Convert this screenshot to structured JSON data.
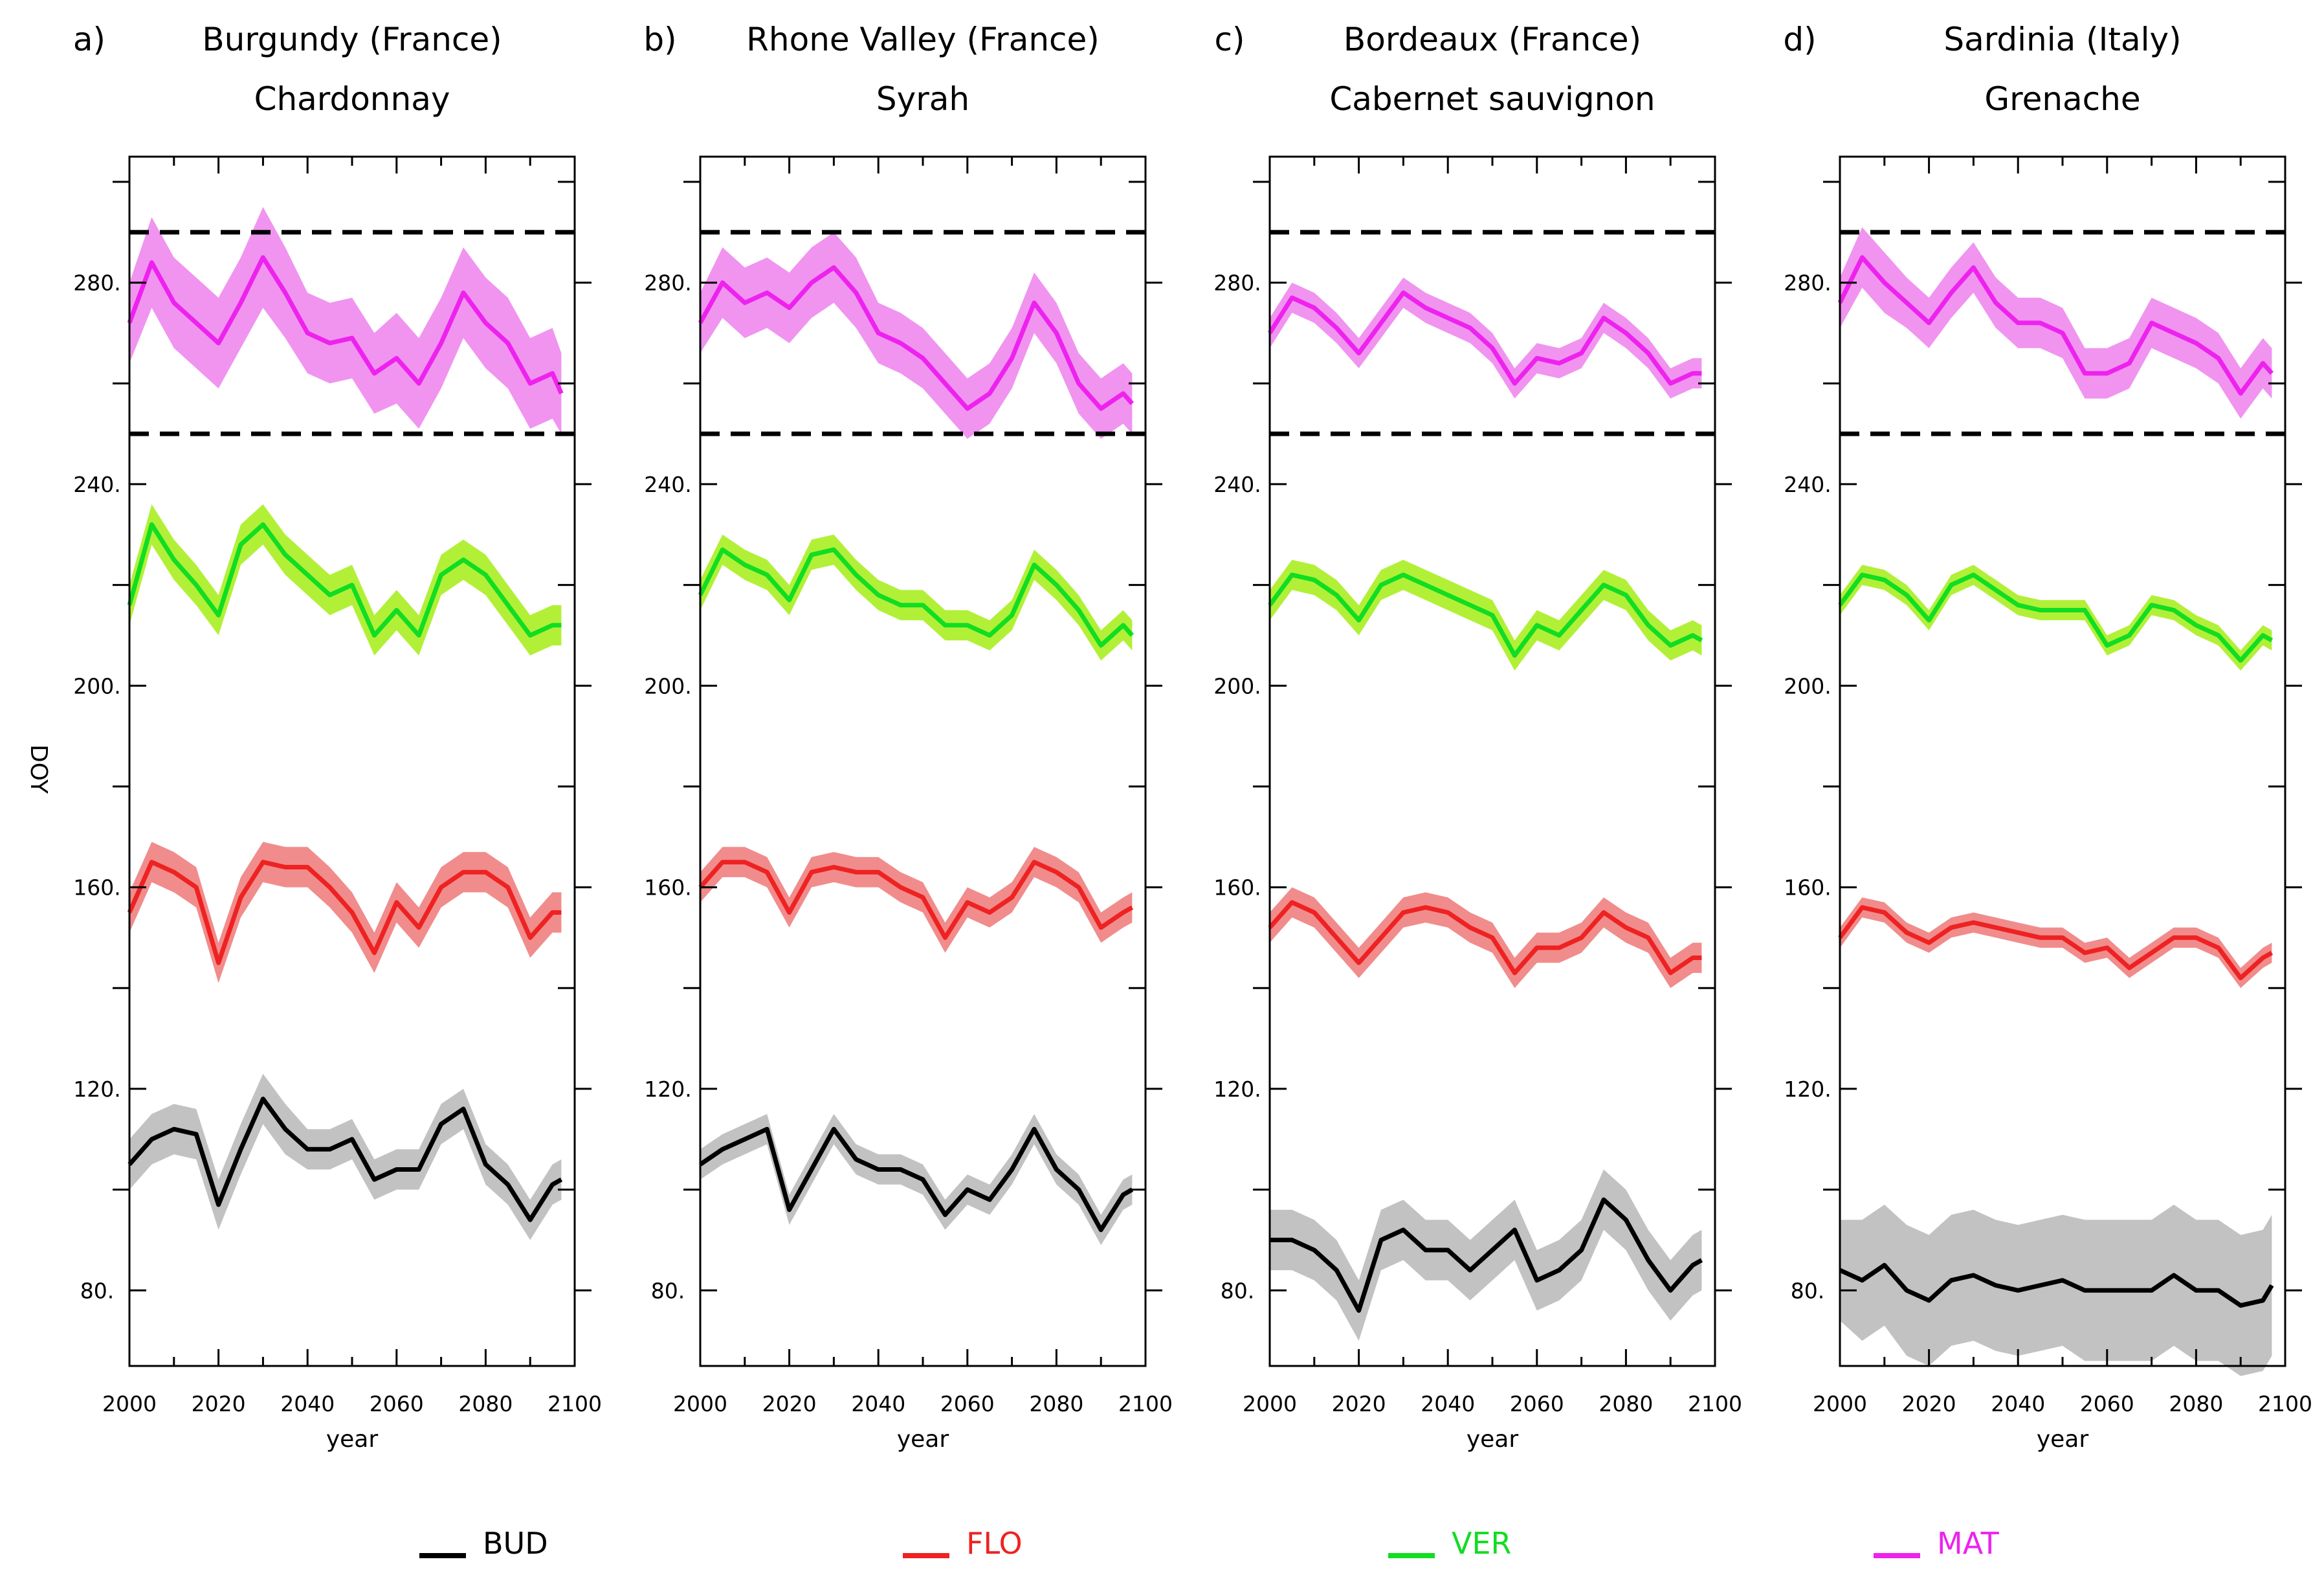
{
  "chart_data": {
    "type": "line",
    "ylabel": "DOY",
    "xlabel": "year",
    "xlim": [
      2000,
      2100
    ],
    "ylim": [
      65,
      305
    ],
    "xticks": [
      2000,
      2020,
      2040,
      2060,
      2080,
      2100
    ],
    "yticks": [
      80,
      120,
      160,
      200,
      240,
      280
    ],
    "ytick_labels": [
      "80.",
      "120.",
      "160.",
      "200.",
      "240.",
      "280."
    ],
    "reference_lines": [
      250,
      290
    ],
    "legend": [
      {
        "name": "BUD",
        "color": "#000000"
      },
      {
        "name": "FLO",
        "color": "#ee2222"
      },
      {
        "name": "VER",
        "color": "#11dd22"
      },
      {
        "name": "MAT",
        "color": "#ee22ee"
      }
    ],
    "panels": [
      {
        "letter": "a)",
        "region": "Burgundy (France)",
        "cultivar": "Chardonnay",
        "x": [
          2000,
          2005,
          2010,
          2015,
          2020,
          2025,
          2030,
          2035,
          2040,
          2045,
          2050,
          2055,
          2060,
          2065,
          2070,
          2075,
          2080,
          2085,
          2090,
          2095,
          2097
        ],
        "series": [
          {
            "name": "BUD",
            "values": [
              105,
              110,
              112,
              111,
              97,
              108,
              118,
              112,
              108,
              108,
              110,
              102,
              104,
              104,
              113,
              116,
              105,
              101,
              94,
              101,
              102
            ],
            "band": [
              5,
              5,
              5,
              5,
              5,
              5,
              5,
              5,
              4,
              4,
              4,
              4,
              4,
              4,
              4,
              4,
              4,
              4,
              4,
              4,
              4
            ]
          },
          {
            "name": "FLO",
            "values": [
              155,
              165,
              163,
              160,
              145,
              158,
              165,
              164,
              164,
              160,
              155,
              147,
              157,
              152,
              160,
              163,
              163,
              160,
              150,
              155,
              155
            ],
            "band": [
              4,
              4,
              4,
              4,
              4,
              4,
              4,
              4,
              4,
              4,
              4,
              4,
              4,
              4,
              4,
              4,
              4,
              4,
              4,
              4,
              4
            ]
          },
          {
            "name": "VER",
            "values": [
              216,
              232,
              225,
              220,
              214,
              228,
              232,
              226,
              222,
              218,
              220,
              210,
              215,
              210,
              222,
              225,
              222,
              216,
              210,
              212,
              212
            ],
            "band": [
              4,
              4,
              4,
              4,
              4,
              4,
              4,
              4,
              4,
              4,
              4,
              4,
              4,
              4,
              4,
              4,
              4,
              4,
              4,
              4,
              4
            ]
          },
          {
            "name": "MAT",
            "values": [
              272,
              284,
              276,
              272,
              268,
              276,
              285,
              278,
              270,
              268,
              269,
              262,
              265,
              260,
              268,
              278,
              272,
              268,
              260,
              262,
              258
            ],
            "band": [
              8,
              9,
              9,
              9,
              9,
              9,
              10,
              9,
              8,
              8,
              8,
              8,
              9,
              9,
              9,
              9,
              9,
              9,
              9,
              9,
              8
            ]
          }
        ]
      },
      {
        "letter": "b)",
        "region": "Rhone Valley (France)",
        "cultivar": "Syrah",
        "x": [
          2000,
          2005,
          2010,
          2015,
          2020,
          2025,
          2030,
          2035,
          2040,
          2045,
          2050,
          2055,
          2060,
          2065,
          2070,
          2075,
          2080,
          2085,
          2090,
          2095,
          2097
        ],
        "series": [
          {
            "name": "BUD",
            "values": [
              105,
              108,
              110,
              112,
              96,
              104,
              112,
              106,
              104,
              104,
              102,
              95,
              100,
              98,
              104,
              112,
              104,
              100,
              92,
              99,
              100
            ],
            "band": [
              3,
              3,
              3,
              3,
              3,
              3,
              3,
              3,
              3,
              3,
              3,
              3,
              3,
              3,
              3,
              3,
              3,
              3,
              3,
              3,
              3
            ]
          },
          {
            "name": "FLO",
            "values": [
              160,
              165,
              165,
              163,
              155,
              163,
              164,
              163,
              163,
              160,
              158,
              150,
              157,
              155,
              158,
              165,
              163,
              160,
              152,
              155,
              156
            ],
            "band": [
              3,
              3,
              3,
              3,
              3,
              3,
              3,
              3,
              3,
              3,
              3,
              3,
              3,
              3,
              3,
              3,
              3,
              3,
              3,
              3,
              3
            ]
          },
          {
            "name": "VER",
            "values": [
              218,
              227,
              224,
              222,
              217,
              226,
              227,
              222,
              218,
              216,
              216,
              212,
              212,
              210,
              214,
              224,
              220,
              215,
              208,
              212,
              210
            ],
            "band": [
              3,
              3,
              3,
              3,
              3,
              3,
              3,
              3,
              3,
              3,
              3,
              3,
              3,
              3,
              3,
              3,
              3,
              3,
              3,
              3,
              3
            ]
          },
          {
            "name": "MAT",
            "values": [
              272,
              280,
              276,
              278,
              275,
              280,
              283,
              278,
              270,
              268,
              265,
              260,
              255,
              258,
              265,
              276,
              270,
              260,
              255,
              258,
              256
            ],
            "band": [
              6,
              7,
              7,
              7,
              7,
              7,
              7,
              7,
              6,
              6,
              6,
              6,
              6,
              6,
              6,
              6,
              6,
              6,
              6,
              6,
              6
            ]
          }
        ]
      },
      {
        "letter": "c)",
        "region": "Bordeaux (France)",
        "cultivar": "Cabernet sauvignon",
        "x": [
          2000,
          2005,
          2010,
          2015,
          2020,
          2025,
          2030,
          2035,
          2040,
          2045,
          2050,
          2055,
          2060,
          2065,
          2070,
          2075,
          2080,
          2085,
          2090,
          2095,
          2097
        ],
        "series": [
          {
            "name": "BUD",
            "values": [
              90,
              90,
              88,
              84,
              76,
              90,
              92,
              88,
              88,
              84,
              88,
              92,
              82,
              84,
              88,
              98,
              94,
              86,
              80,
              85,
              86
            ],
            "band": [
              6,
              6,
              6,
              6,
              6,
              6,
              6,
              6,
              6,
              6,
              6,
              6,
              6,
              6,
              6,
              6,
              6,
              6,
              6,
              6,
              6
            ]
          },
          {
            "name": "FLO",
            "values": [
              152,
              157,
              155,
              150,
              145,
              150,
              155,
              156,
              155,
              152,
              150,
              143,
              148,
              148,
              150,
              155,
              152,
              150,
              143,
              146,
              146
            ],
            "band": [
              3,
              3,
              3,
              3,
              3,
              3,
              3,
              3,
              3,
              3,
              3,
              3,
              3,
              3,
              3,
              3,
              3,
              3,
              3,
              3,
              3
            ]
          },
          {
            "name": "VER",
            "values": [
              216,
              222,
              221,
              218,
              213,
              220,
              222,
              220,
              218,
              216,
              214,
              206,
              212,
              210,
              215,
              220,
              218,
              212,
              208,
              210,
              209
            ],
            "band": [
              3,
              3,
              3,
              3,
              3,
              3,
              3,
              3,
              3,
              3,
              3,
              3,
              3,
              3,
              3,
              3,
              3,
              3,
              3,
              3,
              3
            ]
          },
          {
            "name": "MAT",
            "values": [
              270,
              277,
              275,
              271,
              266,
              272,
              278,
              275,
              273,
              271,
              267,
              260,
              265,
              264,
              266,
              273,
              270,
              266,
              260,
              262,
              262
            ],
            "band": [
              3,
              3,
              3,
              3,
              3,
              3,
              3,
              3,
              3,
              3,
              3,
              3,
              3,
              3,
              3,
              3,
              3,
              3,
              3,
              3,
              3
            ]
          }
        ]
      },
      {
        "letter": "d)",
        "region": "Sardinia (Italy)",
        "cultivar": "Grenache",
        "x": [
          2000,
          2005,
          2010,
          2015,
          2020,
          2025,
          2030,
          2035,
          2040,
          2045,
          2050,
          2055,
          2060,
          2065,
          2070,
          2075,
          2080,
          2085,
          2090,
          2095,
          2097
        ],
        "series": [
          {
            "name": "BUD",
            "values": [
              84,
              82,
              85,
              80,
              78,
              82,
              83,
              81,
              80,
              81,
              82,
              80,
              80,
              80,
              80,
              83,
              80,
              80,
              77,
              78,
              81
            ],
            "band": [
              10,
              12,
              12,
              13,
              13,
              13,
              13,
              13,
              13,
              13,
              13,
              14,
              14,
              14,
              14,
              14,
              14,
              14,
              14,
              14,
              14
            ]
          },
          {
            "name": "FLO",
            "values": [
              150,
              156,
              155,
              151,
              149,
              152,
              153,
              152,
              151,
              150,
              150,
              147,
              148,
              144,
              147,
              150,
              150,
              148,
              142,
              146,
              147
            ],
            "band": [
              2,
              2,
              2,
              2,
              2,
              2,
              2,
              2,
              2,
              2,
              2,
              2,
              2,
              2,
              2,
              2,
              2,
              2,
              2,
              2,
              2
            ]
          },
          {
            "name": "VER",
            "values": [
              216,
              222,
              221,
              218,
              213,
              220,
              222,
              219,
              216,
              215,
              215,
              215,
              208,
              210,
              216,
              215,
              212,
              210,
              205,
              210,
              209
            ],
            "band": [
              2,
              2,
              2,
              2,
              2,
              2,
              2,
              2,
              2,
              2,
              2,
              2,
              2,
              2,
              2,
              2,
              2,
              2,
              2,
              2,
              2
            ]
          },
          {
            "name": "MAT",
            "values": [
              276,
              285,
              280,
              276,
              272,
              278,
              283,
              276,
              272,
              272,
              270,
              262,
              262,
              264,
              272,
              270,
              268,
              265,
              258,
              264,
              262
            ],
            "band": [
              5,
              6,
              6,
              5,
              5,
              5,
              5,
              5,
              5,
              5,
              5,
              5,
              5,
              5,
              5,
              5,
              5,
              5,
              5,
              5,
              5
            ]
          }
        ]
      }
    ]
  }
}
